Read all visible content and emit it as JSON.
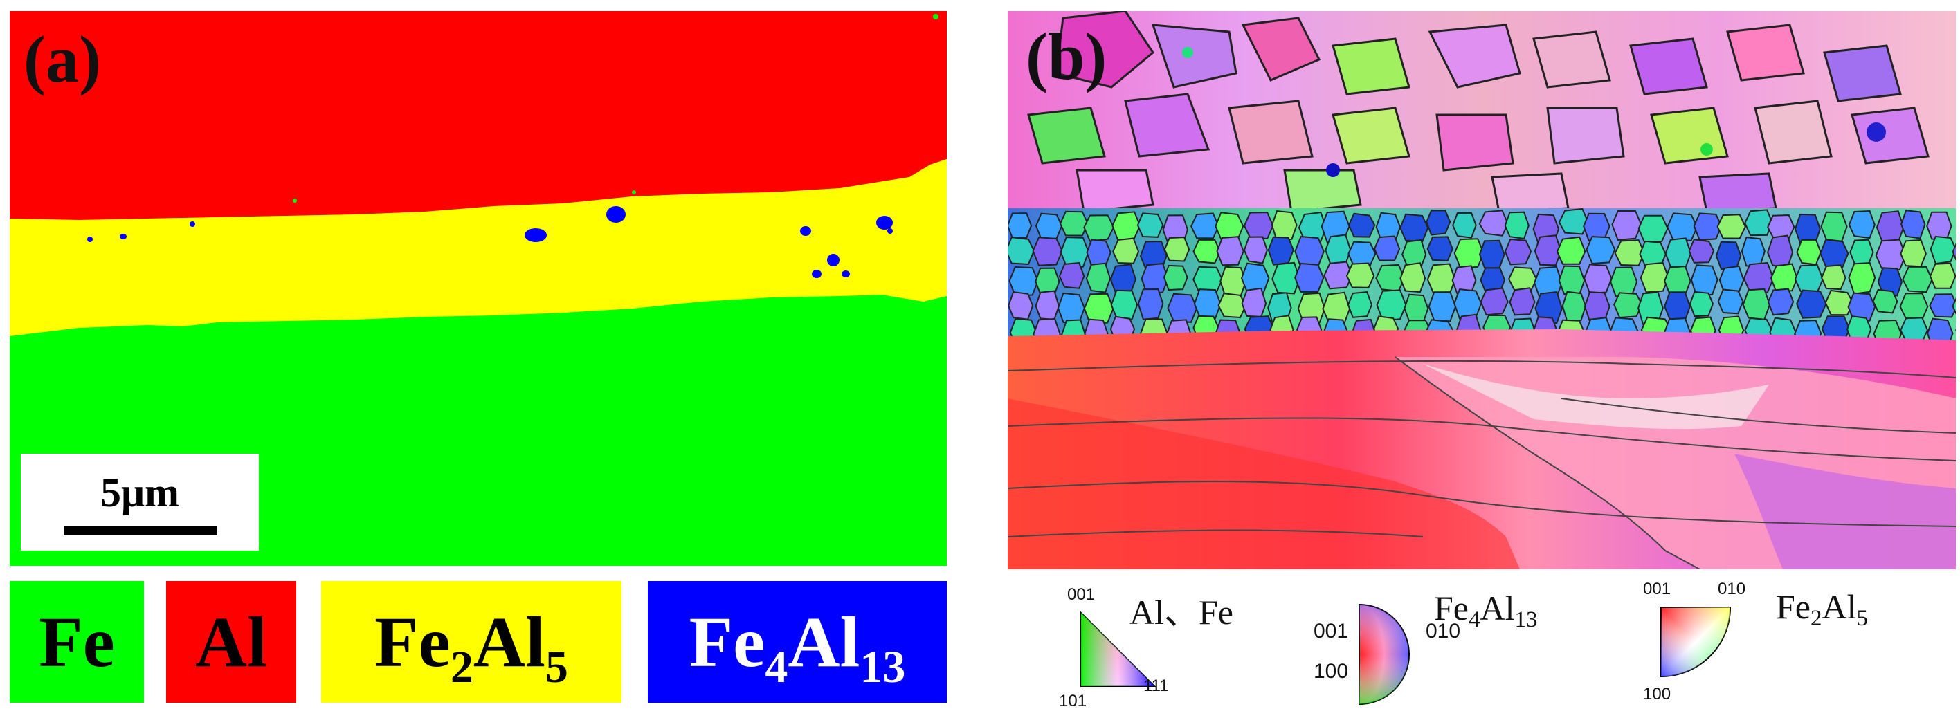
{
  "panel_a": {
    "label": "(a)",
    "scale_bar": "5μm",
    "colors": {
      "fe": "#00ff00",
      "al": "#ff0000",
      "fe2al5": "#ffff00",
      "fe4al13": "#0000ff"
    }
  },
  "phase_legend": {
    "fe": "Fe",
    "al": "Al",
    "fe2al5": {
      "base": "Fe",
      "sub1": "2",
      "mid": "Al",
      "sub2": "5"
    },
    "fe4al13": {
      "base": "Fe",
      "sub1": "4",
      "mid": "Al",
      "sub2": "13"
    }
  },
  "panel_b": {
    "label": "(b)"
  },
  "ipf_keys": {
    "al_fe": {
      "title": "Al、Fe",
      "corner_top": "001",
      "corner_bottom_left": "101",
      "corner_bottom_right": "111"
    },
    "fe4al13": {
      "title_base": "Fe",
      "title_sub1": "4",
      "title_mid": "Al",
      "title_sub2": "13",
      "left_top": "001",
      "right": "010",
      "left_bottom": "100"
    },
    "fe2al5": {
      "title_base": "Fe",
      "title_sub1": "2",
      "title_mid": "Al",
      "title_sub2": "5",
      "top_left": "001",
      "top_right": "010",
      "bottom_left": "100"
    }
  }
}
